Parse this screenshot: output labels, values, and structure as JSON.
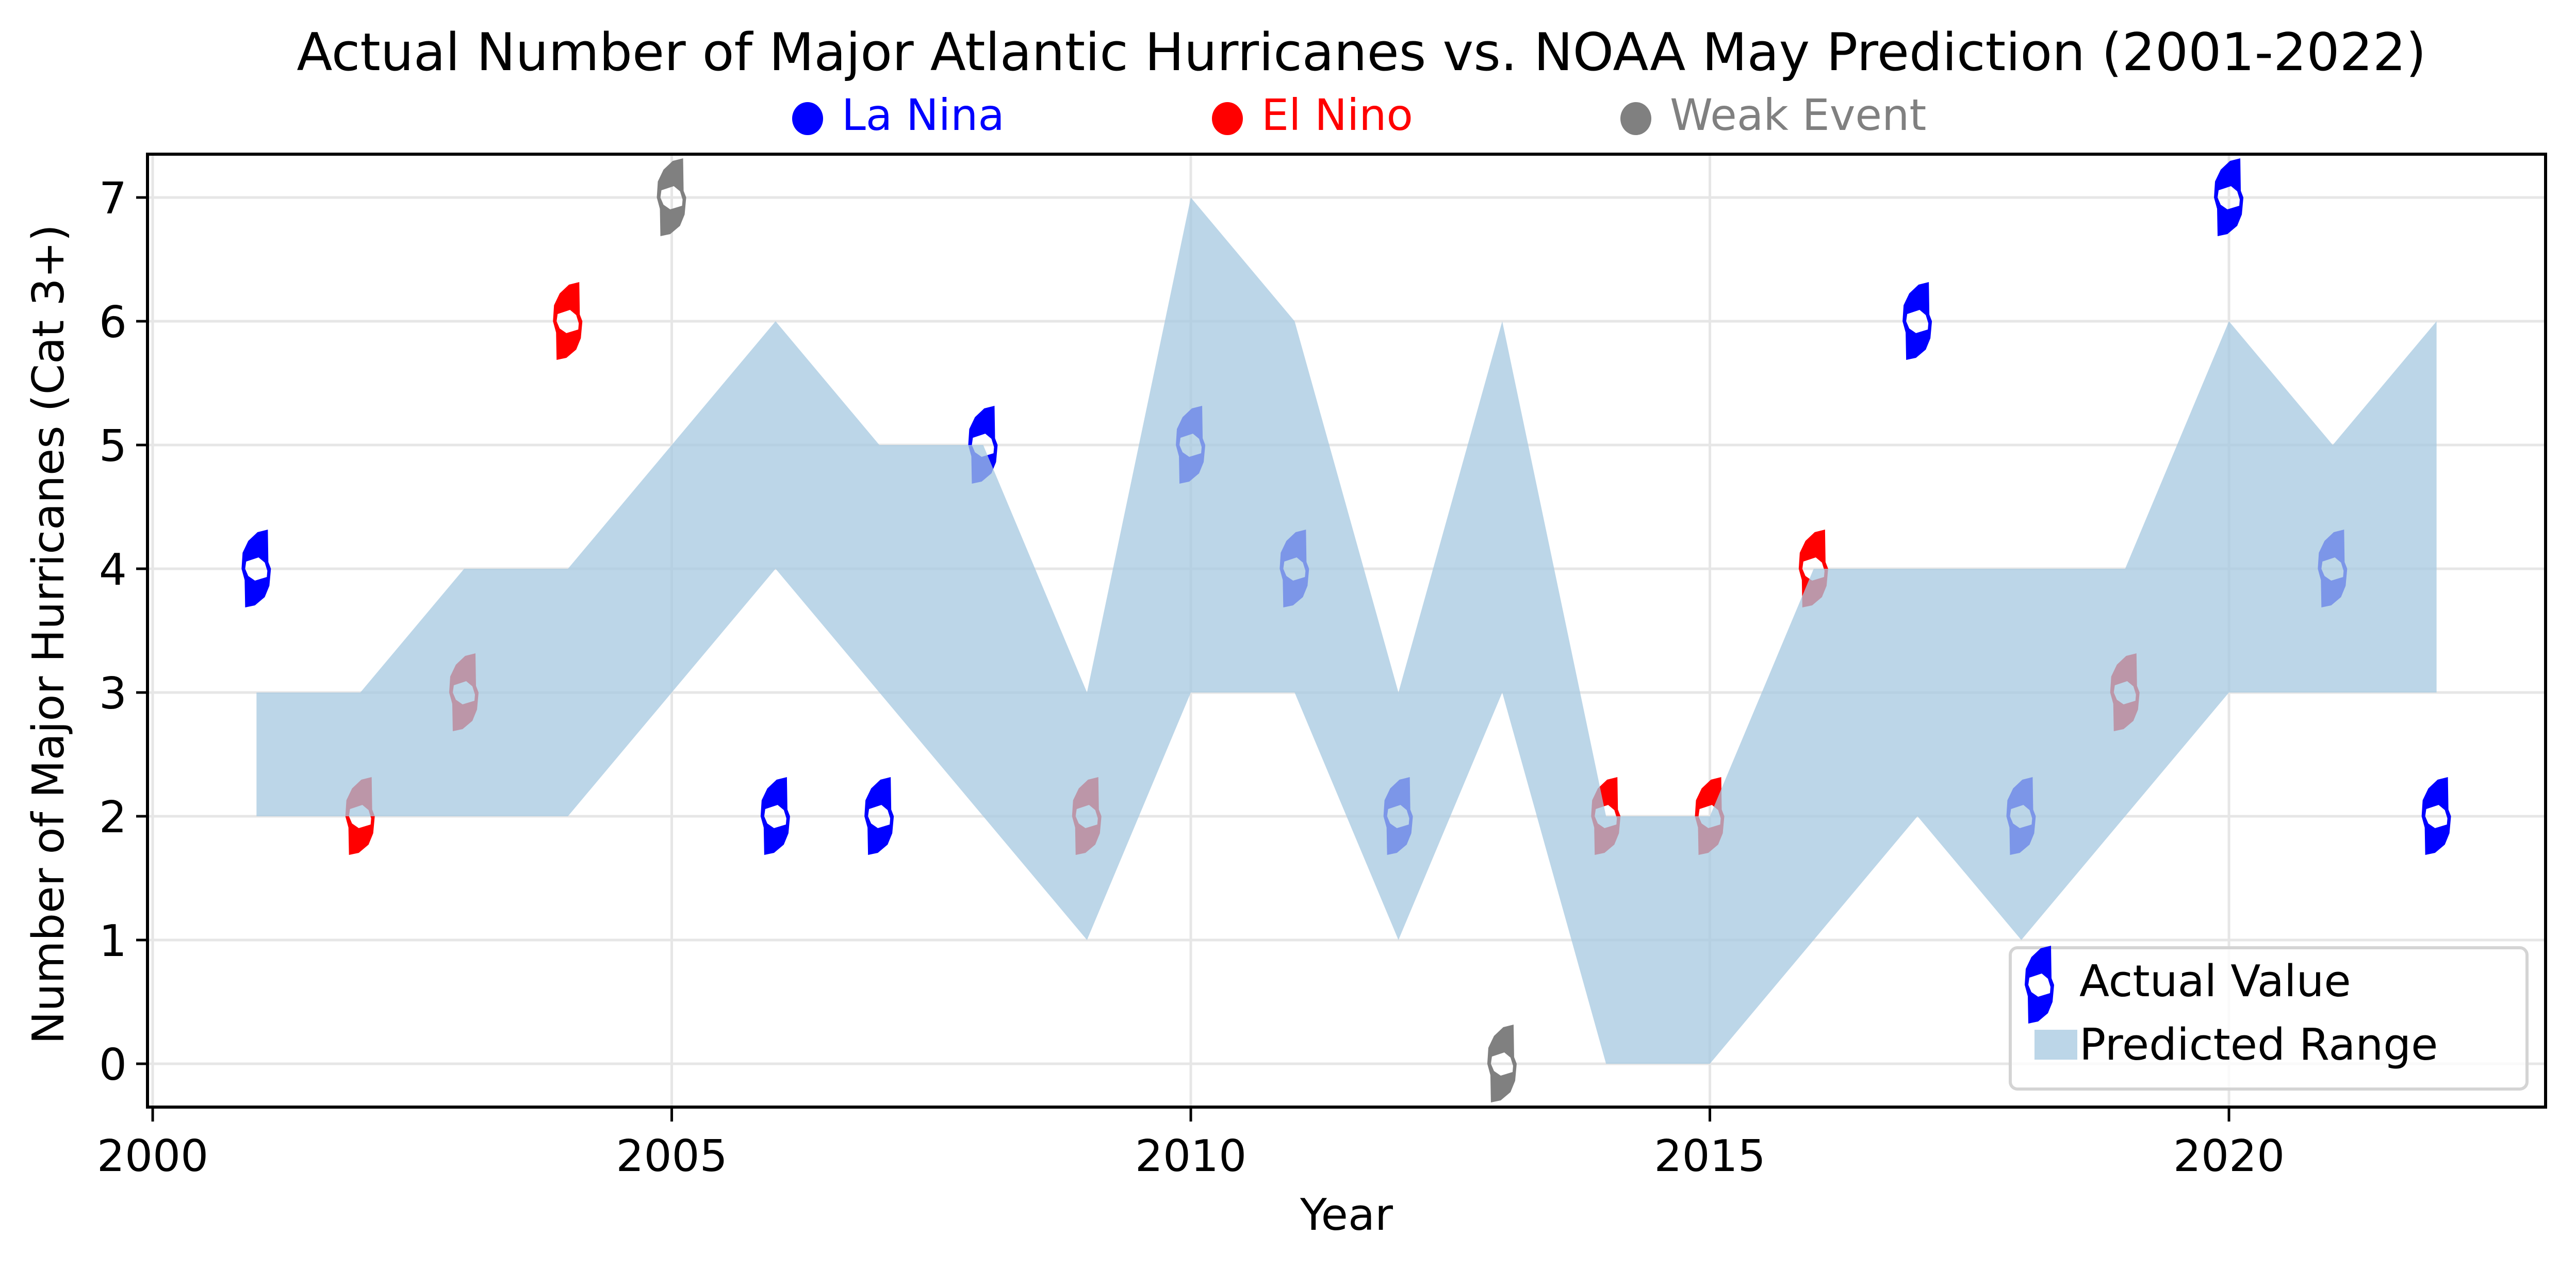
{
  "chart_data": {
    "type": "area",
    "title": "Actual Number of Major Atlantic Hurricanes vs. NOAA May Prediction (2001-2022)",
    "xlabel": "Year",
    "ylabel": "Number of Major Hurricanes (Cat 3+)",
    "xlim": [
      1999.95,
      2023.05
    ],
    "ylim": [
      -0.35,
      7.35
    ],
    "xticks": [
      2000,
      2005,
      2010,
      2015,
      2020
    ],
    "xtick_labels": [
      "2000",
      "2005",
      "2010",
      "2015",
      "2020"
    ],
    "yticks": [
      0,
      1,
      2,
      3,
      4,
      5,
      6,
      7
    ],
    "ytick_labels": [
      "0",
      "1",
      "2",
      "3",
      "4",
      "5",
      "6",
      "7"
    ],
    "grid": true,
    "legend_placement": "lower-right",
    "years": [
      2001,
      2002,
      2003,
      2004,
      2005,
      2006,
      2007,
      2008,
      2009,
      2010,
      2011,
      2012,
      2013,
      2014,
      2015,
      2016,
      2017,
      2018,
      2019,
      2020,
      2021,
      2022
    ],
    "series": [
      {
        "name": "Predicted Range",
        "kind": "fill_between",
        "color": "#a6c8e0",
        "opacity": 0.75,
        "low": [
          2,
          2,
          2,
          2,
          3,
          4,
          3,
          2,
          1,
          3,
          3,
          1,
          3,
          0,
          0,
          1,
          2,
          1,
          2,
          3,
          3,
          3
        ],
        "high": [
          3,
          3,
          4,
          4,
          5,
          6,
          5,
          5,
          3,
          7,
          6,
          3,
          6,
          2,
          2,
          4,
          4,
          4,
          4,
          6,
          5,
          6
        ]
      },
      {
        "name": "Actual Value",
        "kind": "scatter",
        "values": [
          4,
          2,
          3,
          6,
          7,
          2,
          2,
          5,
          2,
          5,
          4,
          2,
          0,
          2,
          2,
          4,
          6,
          2,
          3,
          7,
          4,
          2
        ],
        "enso": [
          "La Nina",
          "El Nino",
          "El Nino",
          "El Nino",
          "Weak Event",
          "La Nina",
          "La Nina",
          "La Nina",
          "El Nino",
          "La Nina",
          "La Nina",
          "La Nina",
          "Weak Event",
          "El Nino",
          "El Nino",
          "El Nino",
          "La Nina",
          "La Nina",
          "El Nino",
          "La Nina",
          "La Nina",
          "La Nina"
        ]
      }
    ],
    "category_legend": [
      {
        "label": "La Nina",
        "color": "#0000ff"
      },
      {
        "label": "El Nino",
        "color": "#ff0000"
      },
      {
        "label": "Weak Event",
        "color": "#808080"
      }
    ],
    "legend": [
      {
        "label": "Actual Value",
        "marker_color": "#0000ff"
      },
      {
        "label": "Predicted Range",
        "color": "#a6c8e0"
      }
    ]
  }
}
